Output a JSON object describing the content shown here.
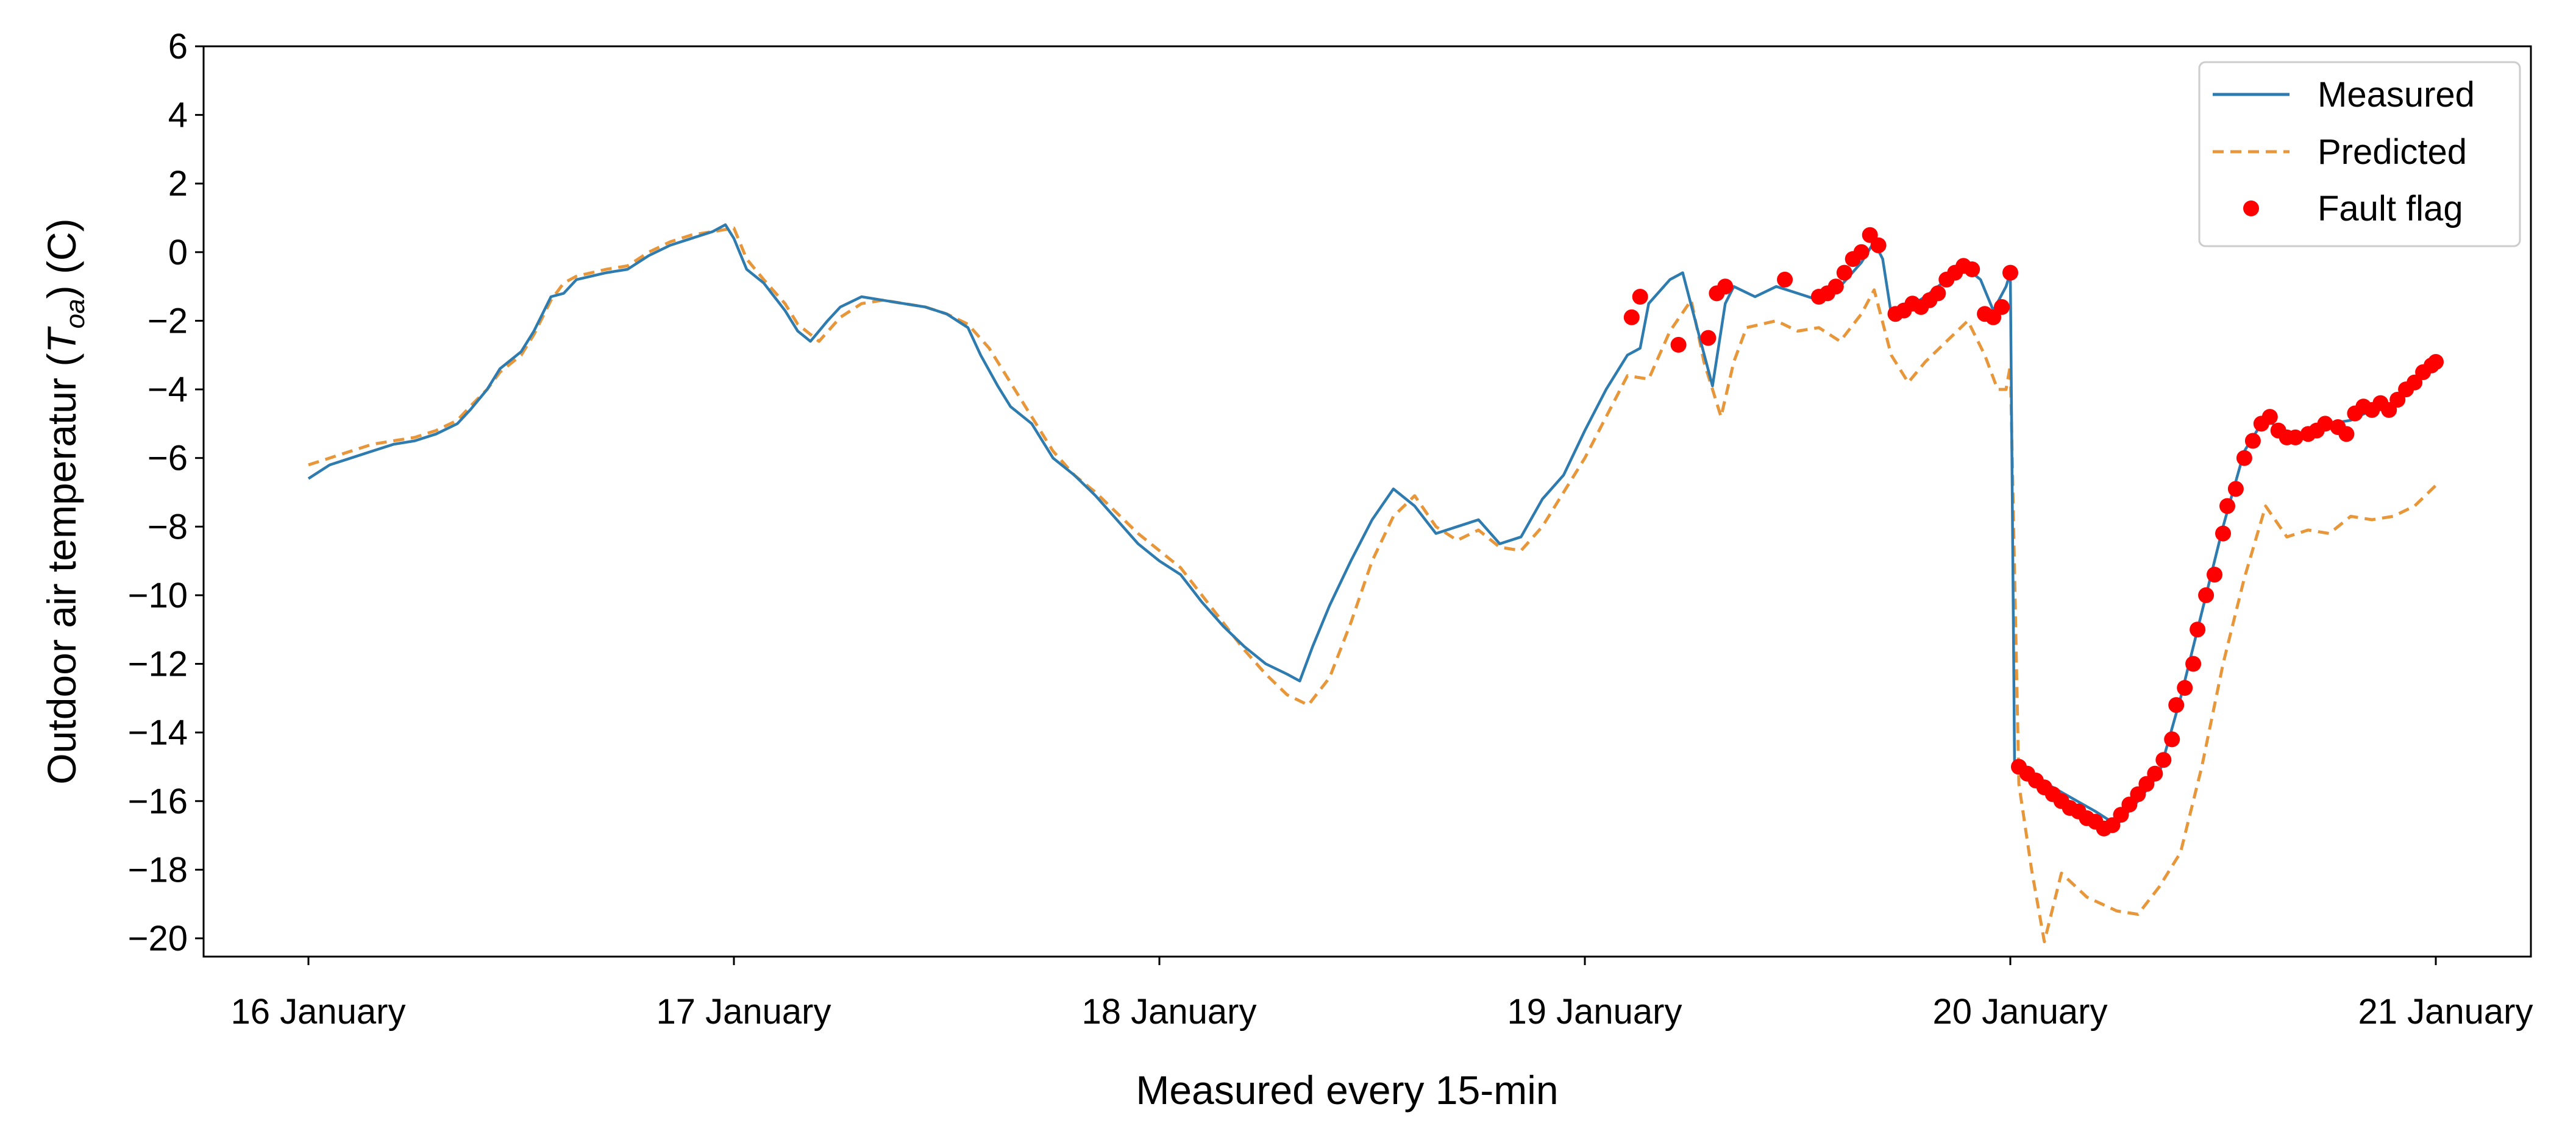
{
  "chart_data": {
    "type": "line",
    "xlabel": "Measured every 15-min",
    "ylabel_prefix": "Outdoor air temperatur (",
    "ylabel_symbol": "T",
    "ylabel_subscript": "oa",
    "ylabel_suffix": ") (C)",
    "xlim": [
      0,
      5
    ],
    "ylim": [
      -21.2,
      6
    ],
    "x_ticks": [
      {
        "value": 0,
        "label": "16 January"
      },
      {
        "value": 1,
        "label": "17 January"
      },
      {
        "value": 2,
        "label": "18 January"
      },
      {
        "value": 3,
        "label": "19 January"
      },
      {
        "value": 4,
        "label": "20 January"
      },
      {
        "value": 5,
        "label": "21 January"
      }
    ],
    "y_ticks": [
      6,
      4,
      2,
      0,
      -2,
      -4,
      -6,
      -8,
      -10,
      -12,
      -14,
      -16,
      -18,
      -20
    ],
    "y_tick_labels": [
      "6",
      "4",
      "2",
      "0",
      "−2",
      "−4",
      "−6",
      "−8",
      "−10",
      "−12",
      "−14",
      "−16",
      "−18",
      "−20"
    ],
    "grid": false,
    "legend_position": "top-right",
    "series": [
      {
        "name": "Measured",
        "style": "solid",
        "color": "#2e7bb0",
        "points": [
          [
            0.0,
            -6.6
          ],
          [
            0.05,
            -6.2
          ],
          [
            0.1,
            -6.0
          ],
          [
            0.15,
            -5.8
          ],
          [
            0.2,
            -5.6
          ],
          [
            0.25,
            -5.5
          ],
          [
            0.3,
            -5.3
          ],
          [
            0.35,
            -5.0
          ],
          [
            0.38,
            -4.6
          ],
          [
            0.42,
            -4.0
          ],
          [
            0.45,
            -3.4
          ],
          [
            0.5,
            -2.9
          ],
          [
            0.53,
            -2.3
          ],
          [
            0.57,
            -1.3
          ],
          [
            0.6,
            -1.2
          ],
          [
            0.63,
            -0.8
          ],
          [
            0.7,
            -0.6
          ],
          [
            0.75,
            -0.5
          ],
          [
            0.8,
            -0.1
          ],
          [
            0.85,
            0.2
          ],
          [
            0.9,
            0.4
          ],
          [
            0.95,
            0.6
          ],
          [
            0.98,
            0.8
          ],
          [
            1.0,
            0.4
          ],
          [
            1.03,
            -0.5
          ],
          [
            1.07,
            -0.9
          ],
          [
            1.12,
            -1.7
          ],
          [
            1.15,
            -2.3
          ],
          [
            1.18,
            -2.6
          ],
          [
            1.22,
            -2.0
          ],
          [
            1.25,
            -1.6
          ],
          [
            1.3,
            -1.3
          ],
          [
            1.35,
            -1.4
          ],
          [
            1.4,
            -1.5
          ],
          [
            1.45,
            -1.6
          ],
          [
            1.5,
            -1.8
          ],
          [
            1.55,
            -2.2
          ],
          [
            1.58,
            -3.0
          ],
          [
            1.62,
            -3.9
          ],
          [
            1.65,
            -4.5
          ],
          [
            1.7,
            -5.0
          ],
          [
            1.75,
            -6.0
          ],
          [
            1.8,
            -6.5
          ],
          [
            1.85,
            -7.1
          ],
          [
            1.9,
            -7.8
          ],
          [
            1.95,
            -8.5
          ],
          [
            2.0,
            -9.0
          ],
          [
            2.05,
            -9.4
          ],
          [
            2.1,
            -10.2
          ],
          [
            2.15,
            -10.9
          ],
          [
            2.2,
            -11.5
          ],
          [
            2.25,
            -12.0
          ],
          [
            2.3,
            -12.3
          ],
          [
            2.33,
            -12.5
          ],
          [
            2.36,
            -11.5
          ],
          [
            2.4,
            -10.3
          ],
          [
            2.45,
            -9.0
          ],
          [
            2.5,
            -7.8
          ],
          [
            2.55,
            -6.9
          ],
          [
            2.6,
            -7.4
          ],
          [
            2.65,
            -8.2
          ],
          [
            2.7,
            -8.0
          ],
          [
            2.75,
            -7.8
          ],
          [
            2.8,
            -8.5
          ],
          [
            2.85,
            -8.3
          ],
          [
            2.9,
            -7.2
          ],
          [
            2.95,
            -6.5
          ],
          [
            3.0,
            -5.2
          ],
          [
            3.05,
            -4.0
          ],
          [
            3.1,
            -3.0
          ],
          [
            3.13,
            -2.8
          ],
          [
            3.15,
            -1.5
          ],
          [
            3.2,
            -0.8
          ],
          [
            3.23,
            -0.6
          ],
          [
            3.27,
            -2.5
          ],
          [
            3.3,
            -3.9
          ],
          [
            3.33,
            -1.5
          ],
          [
            3.35,
            -1.0
          ],
          [
            3.4,
            -1.3
          ],
          [
            3.45,
            -1.0
          ],
          [
            3.5,
            -1.2
          ],
          [
            3.55,
            -1.4
          ],
          [
            3.6,
            -1.0
          ],
          [
            3.65,
            -0.3
          ],
          [
            3.68,
            0.3
          ],
          [
            3.7,
            -0.2
          ],
          [
            3.72,
            -1.8
          ],
          [
            3.76,
            -1.6
          ],
          [
            3.8,
            -1.3
          ],
          [
            3.85,
            -0.8
          ],
          [
            3.9,
            -0.5
          ],
          [
            3.93,
            -0.8
          ],
          [
            3.96,
            -1.7
          ],
          [
            3.99,
            -1.0
          ],
          [
            4.0,
            -0.6
          ],
          [
            4.01,
            -15.0
          ],
          [
            4.1,
            -15.6
          ],
          [
            4.2,
            -16.3
          ],
          [
            4.25,
            -16.7
          ],
          [
            4.3,
            -16.0
          ],
          [
            4.35,
            -15.2
          ],
          [
            4.4,
            -13.0
          ],
          [
            4.45,
            -10.5
          ],
          [
            4.5,
            -8.0
          ],
          [
            4.55,
            -5.8
          ],
          [
            4.6,
            -4.8
          ],
          [
            4.65,
            -5.4
          ],
          [
            4.7,
            -5.3
          ],
          [
            4.75,
            -5.0
          ],
          [
            4.8,
            -4.9
          ],
          [
            4.85,
            -4.6
          ],
          [
            4.9,
            -4.4
          ],
          [
            4.95,
            -3.8
          ],
          [
            5.0,
            -3.2
          ]
        ]
      },
      {
        "name": "Predicted",
        "style": "dashed",
        "color": "#e8963a",
        "points": [
          [
            0.0,
            -6.2
          ],
          [
            0.05,
            -6.0
          ],
          [
            0.1,
            -5.8
          ],
          [
            0.15,
            -5.6
          ],
          [
            0.2,
            -5.5
          ],
          [
            0.25,
            -5.4
          ],
          [
            0.3,
            -5.2
          ],
          [
            0.35,
            -4.9
          ],
          [
            0.38,
            -4.5
          ],
          [
            0.42,
            -4.0
          ],
          [
            0.45,
            -3.5
          ],
          [
            0.5,
            -3.0
          ],
          [
            0.53,
            -2.4
          ],
          [
            0.57,
            -1.4
          ],
          [
            0.6,
            -0.9
          ],
          [
            0.63,
            -0.7
          ],
          [
            0.7,
            -0.5
          ],
          [
            0.75,
            -0.4
          ],
          [
            0.8,
            0.0
          ],
          [
            0.85,
            0.3
          ],
          [
            0.9,
            0.5
          ],
          [
            0.95,
            0.6
          ],
          [
            1.0,
            0.7
          ],
          [
            1.03,
            -0.2
          ],
          [
            1.07,
            -0.8
          ],
          [
            1.12,
            -1.5
          ],
          [
            1.15,
            -2.1
          ],
          [
            1.2,
            -2.6
          ],
          [
            1.25,
            -1.9
          ],
          [
            1.3,
            -1.5
          ],
          [
            1.35,
            -1.4
          ],
          [
            1.4,
            -1.5
          ],
          [
            1.45,
            -1.6
          ],
          [
            1.5,
            -1.8
          ],
          [
            1.55,
            -2.1
          ],
          [
            1.6,
            -2.8
          ],
          [
            1.65,
            -3.8
          ],
          [
            1.7,
            -4.8
          ],
          [
            1.75,
            -5.8
          ],
          [
            1.8,
            -6.5
          ],
          [
            1.85,
            -7.0
          ],
          [
            1.9,
            -7.6
          ],
          [
            1.95,
            -8.2
          ],
          [
            2.0,
            -8.7
          ],
          [
            2.05,
            -9.2
          ],
          [
            2.1,
            -10.0
          ],
          [
            2.15,
            -10.8
          ],
          [
            2.2,
            -11.6
          ],
          [
            2.25,
            -12.3
          ],
          [
            2.3,
            -12.9
          ],
          [
            2.35,
            -13.2
          ],
          [
            2.4,
            -12.4
          ],
          [
            2.45,
            -10.8
          ],
          [
            2.5,
            -9.0
          ],
          [
            2.55,
            -7.7
          ],
          [
            2.6,
            -7.1
          ],
          [
            2.65,
            -8.0
          ],
          [
            2.7,
            -8.4
          ],
          [
            2.75,
            -8.1
          ],
          [
            2.8,
            -8.6
          ],
          [
            2.85,
            -8.7
          ],
          [
            2.9,
            -8.0
          ],
          [
            2.95,
            -7.0
          ],
          [
            3.0,
            -6.0
          ],
          [
            3.05,
            -4.8
          ],
          [
            3.1,
            -3.6
          ],
          [
            3.15,
            -3.7
          ],
          [
            3.2,
            -2.3
          ],
          [
            3.25,
            -1.4
          ],
          [
            3.28,
            -3.2
          ],
          [
            3.32,
            -4.8
          ],
          [
            3.35,
            -3.2
          ],
          [
            3.38,
            -2.2
          ],
          [
            3.45,
            -2.0
          ],
          [
            3.5,
            -2.3
          ],
          [
            3.55,
            -2.2
          ],
          [
            3.6,
            -2.6
          ],
          [
            3.65,
            -1.8
          ],
          [
            3.68,
            -1.1
          ],
          [
            3.72,
            -3.0
          ],
          [
            3.76,
            -3.8
          ],
          [
            3.8,
            -3.2
          ],
          [
            3.85,
            -2.6
          ],
          [
            3.9,
            -2.0
          ],
          [
            3.94,
            -3.0
          ],
          [
            3.97,
            -4.0
          ],
          [
            3.99,
            -4.0
          ],
          [
            4.0,
            -3.3
          ],
          [
            4.02,
            -15.5
          ],
          [
            4.05,
            -18.0
          ],
          [
            4.08,
            -20.1
          ],
          [
            4.12,
            -18.1
          ],
          [
            4.18,
            -18.8
          ],
          [
            4.25,
            -19.2
          ],
          [
            4.3,
            -19.3
          ],
          [
            4.35,
            -18.5
          ],
          [
            4.4,
            -17.5
          ],
          [
            4.45,
            -15.0
          ],
          [
            4.5,
            -12.0
          ],
          [
            4.55,
            -9.5
          ],
          [
            4.6,
            -7.4
          ],
          [
            4.65,
            -8.3
          ],
          [
            4.7,
            -8.1
          ],
          [
            4.75,
            -8.2
          ],
          [
            4.8,
            -7.7
          ],
          [
            4.85,
            -7.8
          ],
          [
            4.9,
            -7.7
          ],
          [
            4.95,
            -7.4
          ],
          [
            5.0,
            -6.8
          ]
        ]
      },
      {
        "name": "Fault flag",
        "style": "markers",
        "color": "#ff0000",
        "points": [
          [
            3.11,
            -1.9
          ],
          [
            3.13,
            -1.3
          ],
          [
            3.22,
            -2.7
          ],
          [
            3.29,
            -2.5
          ],
          [
            3.31,
            -1.2
          ],
          [
            3.33,
            -1.0
          ],
          [
            3.47,
            -0.8
          ],
          [
            3.55,
            -1.3
          ],
          [
            3.57,
            -1.2
          ],
          [
            3.59,
            -1.0
          ],
          [
            3.61,
            -0.6
          ],
          [
            3.63,
            -0.2
          ],
          [
            3.65,
            0.0
          ],
          [
            3.67,
            0.5
          ],
          [
            3.69,
            0.2
          ],
          [
            3.73,
            -1.8
          ],
          [
            3.75,
            -1.7
          ],
          [
            3.77,
            -1.5
          ],
          [
            3.79,
            -1.6
          ],
          [
            3.81,
            -1.4
          ],
          [
            3.83,
            -1.2
          ],
          [
            3.85,
            -0.8
          ],
          [
            3.87,
            -0.6
          ],
          [
            3.89,
            -0.4
          ],
          [
            3.91,
            -0.5
          ],
          [
            3.94,
            -1.8
          ],
          [
            3.96,
            -1.9
          ],
          [
            3.98,
            -1.6
          ],
          [
            4.0,
            -0.6
          ],
          [
            4.02,
            -15.0
          ],
          [
            4.04,
            -15.2
          ],
          [
            4.06,
            -15.4
          ],
          [
            4.08,
            -15.6
          ],
          [
            4.1,
            -15.8
          ],
          [
            4.12,
            -16.0
          ],
          [
            4.14,
            -16.2
          ],
          [
            4.16,
            -16.3
          ],
          [
            4.18,
            -16.5
          ],
          [
            4.2,
            -16.6
          ],
          [
            4.22,
            -16.8
          ],
          [
            4.24,
            -16.7
          ],
          [
            4.26,
            -16.4
          ],
          [
            4.28,
            -16.1
          ],
          [
            4.3,
            -15.8
          ],
          [
            4.32,
            -15.5
          ],
          [
            4.34,
            -15.2
          ],
          [
            4.36,
            -14.8
          ],
          [
            4.38,
            -14.2
          ],
          [
            4.39,
            -13.2
          ],
          [
            4.41,
            -12.7
          ],
          [
            4.43,
            -12.0
          ],
          [
            4.44,
            -11.0
          ],
          [
            4.46,
            -10.0
          ],
          [
            4.48,
            -9.4
          ],
          [
            4.5,
            -8.2
          ],
          [
            4.51,
            -7.4
          ],
          [
            4.53,
            -6.9
          ],
          [
            4.55,
            -6.0
          ],
          [
            4.57,
            -5.5
          ],
          [
            4.59,
            -5.0
          ],
          [
            4.61,
            -4.8
          ],
          [
            4.63,
            -5.2
          ],
          [
            4.65,
            -5.4
          ],
          [
            4.67,
            -5.4
          ],
          [
            4.7,
            -5.3
          ],
          [
            4.72,
            -5.2
          ],
          [
            4.74,
            -5.0
          ],
          [
            4.77,
            -5.1
          ],
          [
            4.79,
            -5.3
          ],
          [
            4.81,
            -4.7
          ],
          [
            4.83,
            -4.5
          ],
          [
            4.85,
            -4.6
          ],
          [
            4.87,
            -4.4
          ],
          [
            4.89,
            -4.6
          ],
          [
            4.91,
            -4.3
          ],
          [
            4.93,
            -4.0
          ],
          [
            4.95,
            -3.8
          ],
          [
            4.97,
            -3.5
          ],
          [
            4.99,
            -3.3
          ],
          [
            5.0,
            -3.2
          ]
        ]
      }
    ]
  }
}
